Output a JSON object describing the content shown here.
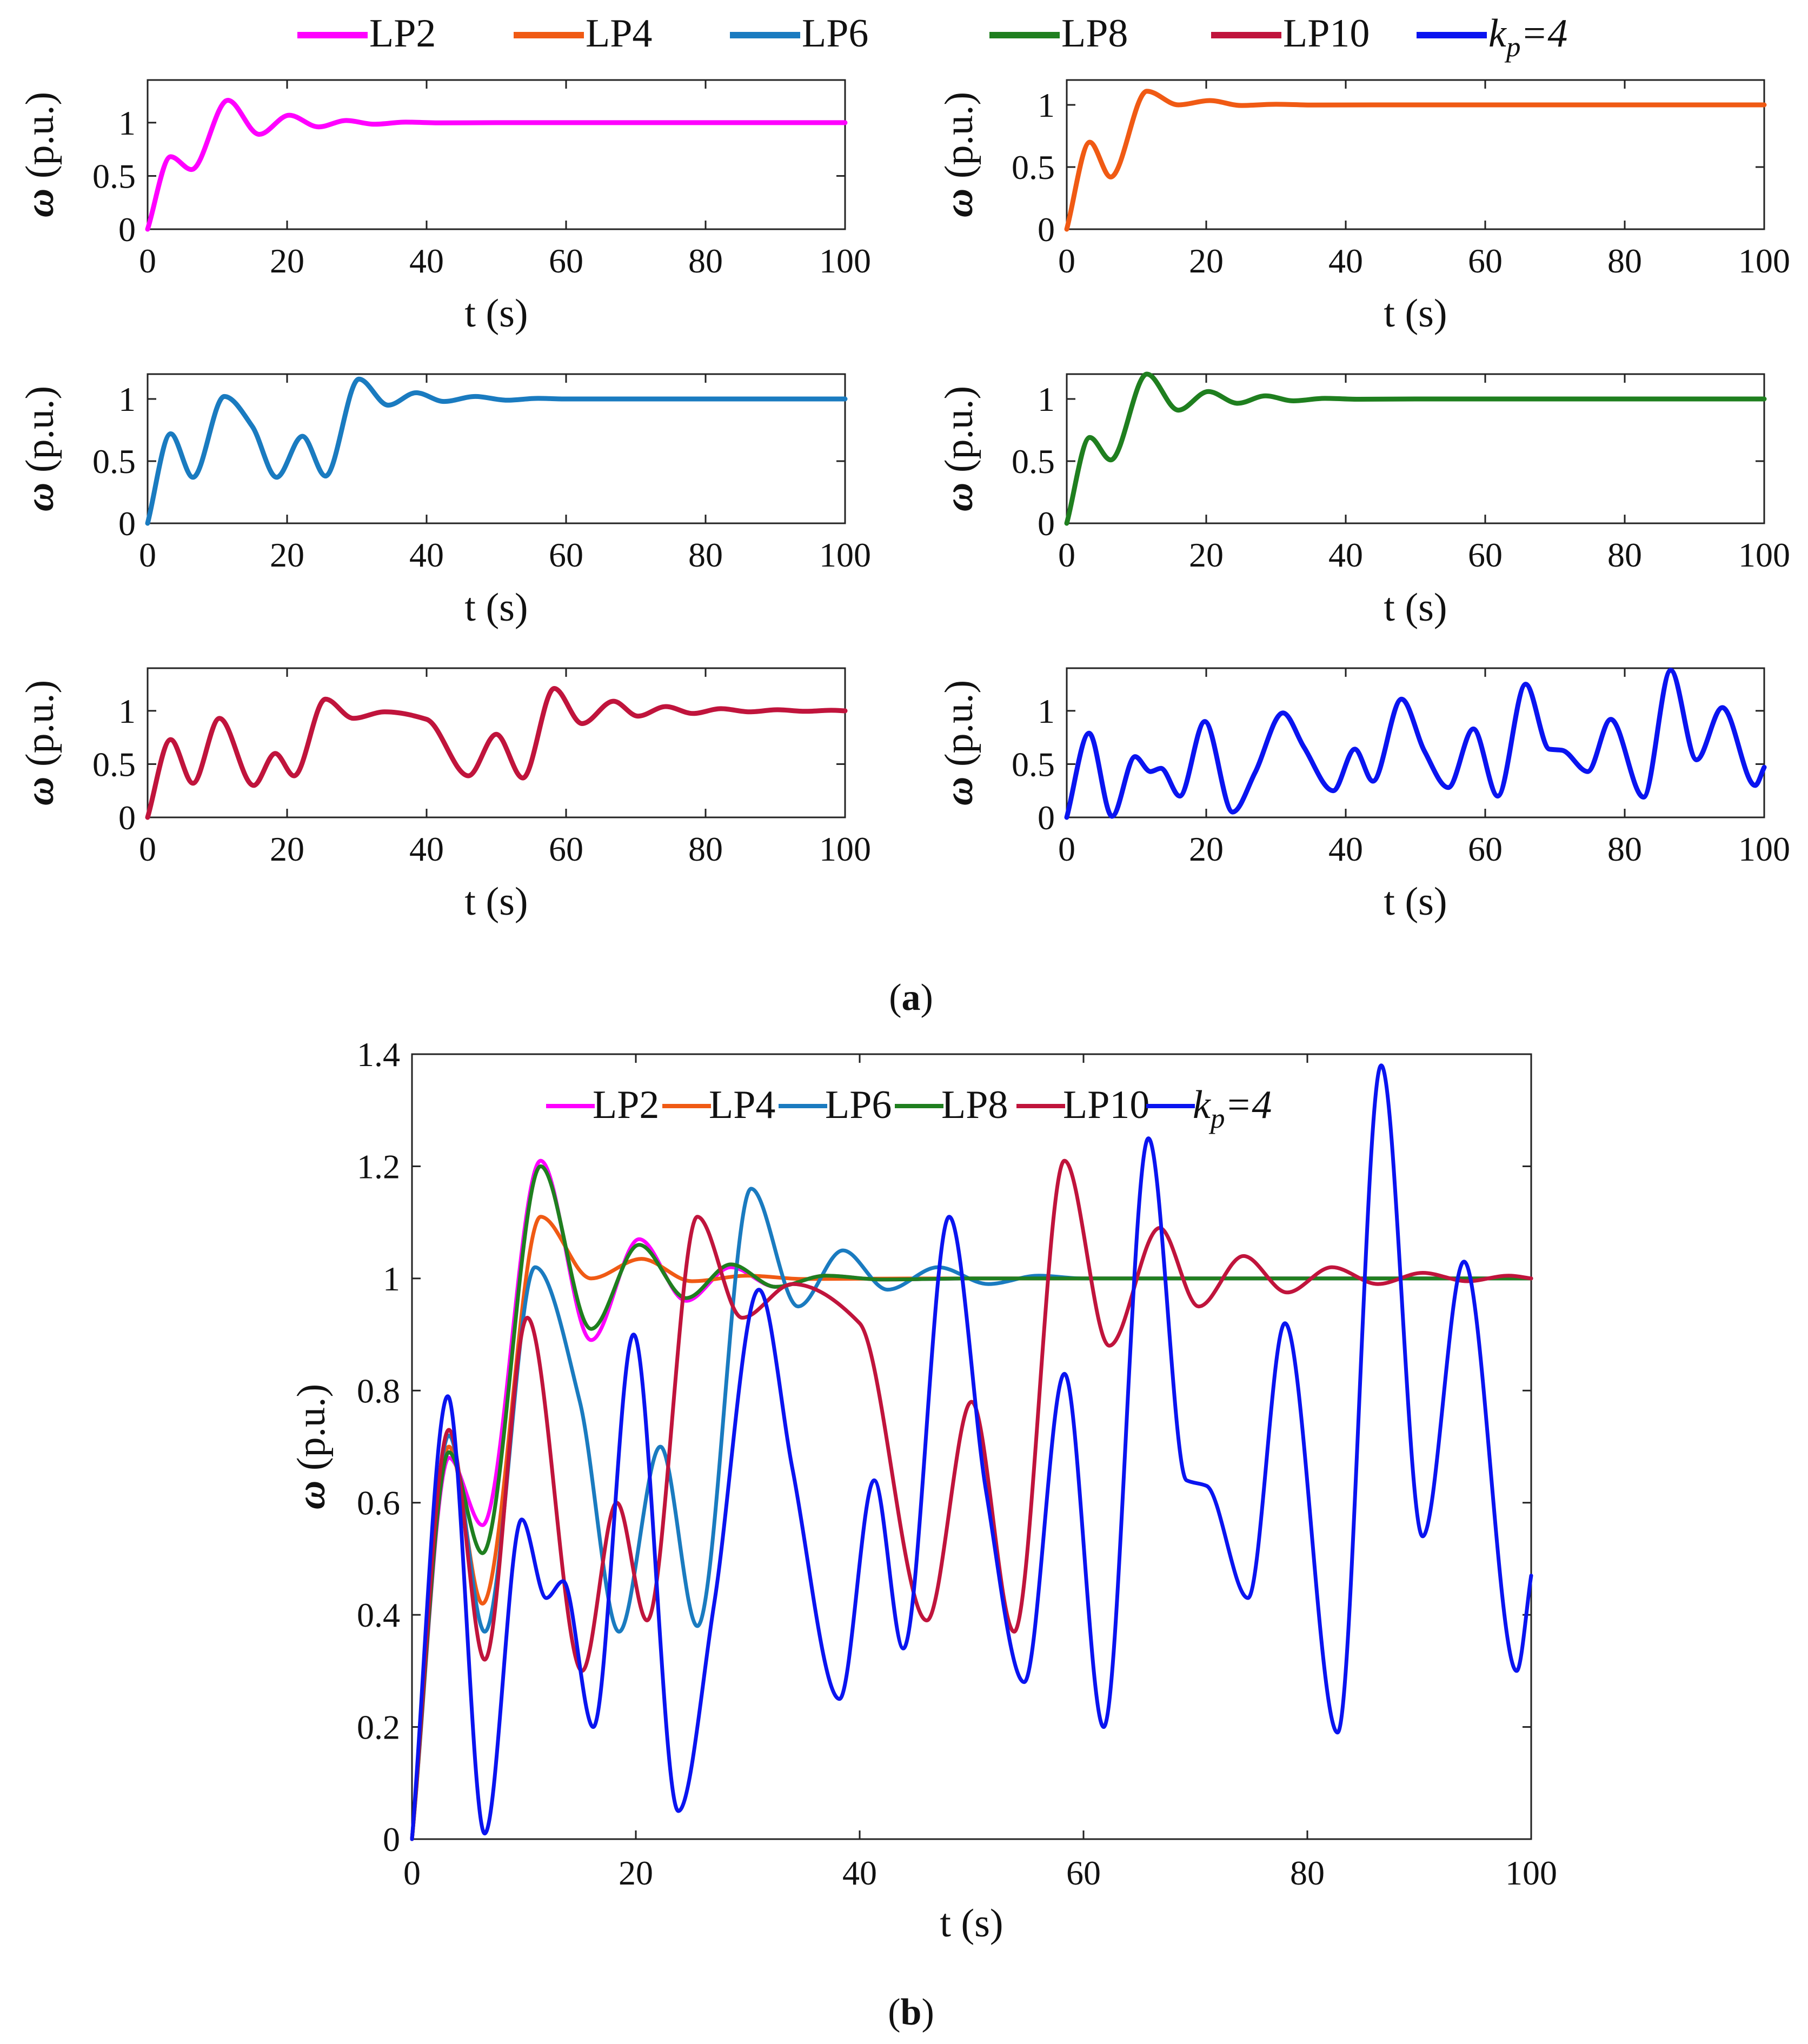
{
  "panel_a": {
    "caption_prefix": "(",
    "caption_letter": "a",
    "caption_suffix": ")",
    "legend": [
      {
        "label": "LP2",
        "color": "#ff00ff"
      },
      {
        "label": "LP4",
        "color": "#f05a14"
      },
      {
        "label": "LP6",
        "color": "#1a7bc0"
      },
      {
        "label": "LP8",
        "color": "#1f7f1f"
      },
      {
        "label": "LP10",
        "color": "#c0143c"
      },
      {
        "label": "k_p=4",
        "k": "k",
        "sub": "p",
        "rest": "=4",
        "color": "#0a14f0"
      }
    ],
    "subplots": [
      {
        "series": "LP2",
        "ylabel": "ω (p.u.)",
        "xlabel": "t (s)"
      },
      {
        "series": "LP4",
        "ylabel": "ω (p.u.)",
        "xlabel": "t (s)"
      },
      {
        "series": "LP6",
        "ylabel": "ω (p.u.)",
        "xlabel": "t (s)"
      },
      {
        "series": "LP8",
        "ylabel": "ω (p.u.)",
        "xlabel": "t (s)"
      },
      {
        "series": "LP10",
        "ylabel": "ω (p.u.)",
        "xlabel": "t (s)"
      },
      {
        "series": "k_p=4",
        "ylabel": "ω (p.u.)",
        "xlabel": "t (s)"
      }
    ]
  },
  "panel_b": {
    "caption_prefix": "(",
    "caption_letter": "b",
    "caption_suffix": ")"
  },
  "chart_data": [
    {
      "type": "line",
      "subplot_grid": [
        3,
        2
      ],
      "xlabel": "t (s)",
      "ylabel": "ω (p.u.)",
      "xlim": [
        0,
        100
      ],
      "ylim": [
        0,
        1.4
      ],
      "xticks": [
        0,
        20,
        40,
        60,
        80,
        100
      ],
      "yticks": [
        0,
        0.5,
        1
      ],
      "legend": "top, horizontal",
      "grid": false
    },
    {
      "type": "line",
      "xlabel": "t (s)",
      "ylabel": "ω (p.u.)",
      "xlim": [
        0,
        100
      ],
      "ylim": [
        0,
        1.4
      ],
      "xticks": [
        0,
        20,
        40,
        60,
        80,
        100
      ],
      "yticks": [
        0,
        0.2,
        0.4,
        0.6,
        0.8,
        1,
        1.2,
        1.4
      ],
      "legend": "top, horizontal",
      "grid": false,
      "series": [
        {
          "name": "LP2",
          "color": "#ff00ff",
          "x": [
            0,
            3.3,
            6.3,
            11.5,
            16,
            20.3,
            24.5,
            28.5,
            32.5,
            37,
            42,
            50,
            60,
            100
          ],
          "y": [
            0,
            0.68,
            0.56,
            1.21,
            0.89,
            1.07,
            0.96,
            1.02,
            0.985,
            1.005,
            0.998,
            1,
            1,
            1
          ]
        },
        {
          "name": "LP4",
          "color": "#f05a14",
          "x": [
            0,
            3.3,
            6.3,
            11.5,
            16,
            20.5,
            25,
            30,
            35,
            45,
            100
          ],
          "y": [
            0,
            0.7,
            0.42,
            1.11,
            1.0,
            1.035,
            0.995,
            1.005,
            0.999,
            1,
            1
          ]
        },
        {
          "name": "LP6",
          "color": "#1a7bc0",
          "x": [
            0,
            3.3,
            6.5,
            11,
            15,
            18.5,
            22.2,
            25.5,
            30.3,
            34.5,
            38.5,
            42.5,
            47,
            51.5,
            56,
            60,
            100
          ],
          "y": [
            0,
            0.72,
            0.37,
            1.02,
            0.78,
            0.37,
            0.7,
            0.38,
            1.16,
            0.95,
            1.05,
            0.98,
            1.02,
            0.99,
            1.005,
            1,
            1
          ]
        },
        {
          "name": "LP8",
          "color": "#1f7f1f",
          "x": [
            0,
            3.3,
            6.3,
            11.5,
            16,
            20.3,
            24.5,
            28.5,
            32.5,
            37,
            42,
            50,
            60,
            100
          ],
          "y": [
            0,
            0.69,
            0.51,
            1.2,
            0.91,
            1.06,
            0.965,
            1.025,
            0.985,
            1.005,
            0.998,
            1,
            1,
            1
          ]
        },
        {
          "name": "LP10",
          "color": "#c0143c",
          "x": [
            0,
            3.3,
            6.5,
            10.3,
            15.2,
            18.3,
            21,
            25.5,
            29.5,
            34,
            40,
            46,
            50,
            53.8,
            58.3,
            62.3,
            66.8,
            70.3,
            74.3,
            78.2,
            82.2,
            86.3,
            90.3,
            94.3,
            98,
            100
          ],
          "y": [
            0,
            0.73,
            0.32,
            0.93,
            0.3,
            0.6,
            0.39,
            1.11,
            0.93,
            0.99,
            0.92,
            0.39,
            0.78,
            0.37,
            1.21,
            0.88,
            1.09,
            0.95,
            1.04,
            0.975,
            1.02,
            0.99,
            1.01,
            0.995,
            1.005,
            1.0
          ]
        },
        {
          "name": "k_p=4",
          "color": "#0a14f0",
          "x": [
            0,
            3.2,
            6.5,
            9.8,
            12,
            13.5,
            16.2,
            19.8,
            23.8,
            27,
            31,
            34,
            38.2,
            41.3,
            43.9,
            48,
            51.3,
            54.7,
            58.3,
            61.8,
            65.8,
            69.2,
            71,
            74.7,
            78,
            82.7,
            86.6,
            90.3,
            94,
            98.7,
            100
          ],
          "y": [
            0,
            0.79,
            0.01,
            0.57,
            0.43,
            0.46,
            0.2,
            0.9,
            0.05,
            0.42,
            0.98,
            0.66,
            0.25,
            0.64,
            0.34,
            1.11,
            0.62,
            0.28,
            0.83,
            0.2,
            1.25,
            0.64,
            0.63,
            0.43,
            0.92,
            0.19,
            1.38,
            0.54,
            1.03,
            0.3,
            0.47
          ]
        }
      ]
    }
  ]
}
